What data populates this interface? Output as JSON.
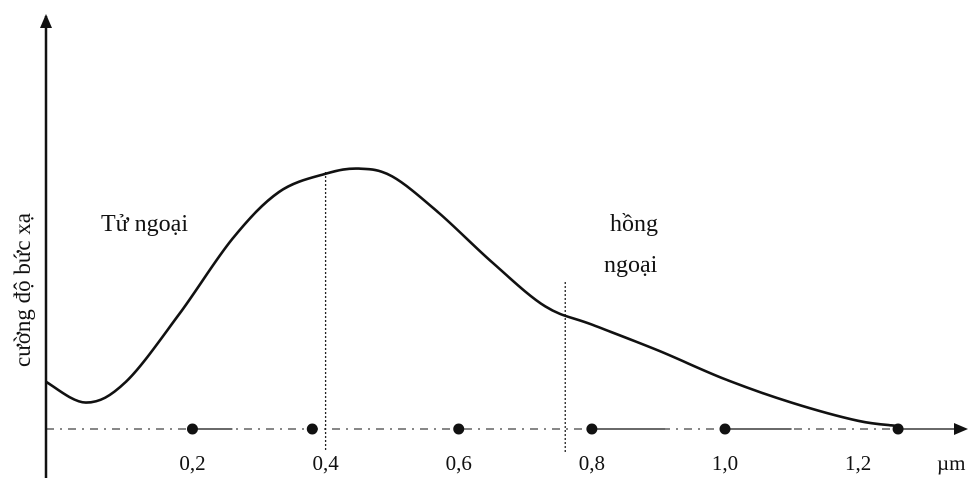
{
  "chart_data": {
    "type": "line",
    "xlabel": "µm",
    "ylabel": "cường độ bức xạ",
    "x_ticks": [
      "0,2",
      "0,4",
      "0,6",
      "0,8",
      "1,0",
      "1,2"
    ],
    "x_tick_values": [
      0.2,
      0.4,
      0.6,
      0.8,
      1.0,
      1.2
    ],
    "xlim": [
      -0.02,
      1.35
    ],
    "ylim": [
      0,
      1
    ],
    "grid": false,
    "annotations": [
      {
        "text": "Tử ngoại",
        "x": 0.1,
        "y": 0.72
      },
      {
        "text": "hồng",
        "x": 0.9,
        "y": 0.72
      },
      {
        "text": "ngoại",
        "x": 0.9,
        "y": 0.56
      }
    ],
    "vertical_markers": [
      0.4,
      0.76
    ],
    "series": [
      {
        "x": [
          -0.02,
          0.04,
          0.1,
          0.18,
          0.26,
          0.33,
          0.4,
          0.45,
          0.5,
          0.57,
          0.65,
          0.73,
          0.8,
          0.9,
          1.0,
          1.1,
          1.2,
          1.26
        ],
        "values": [
          0.17,
          0.09,
          0.17,
          0.43,
          0.72,
          0.9,
          0.97,
          0.99,
          0.96,
          0.82,
          0.63,
          0.46,
          0.39,
          0.29,
          0.18,
          0.09,
          0.02,
          0.0
        ]
      }
    ],
    "range_dots": [
      {
        "x": 0.2,
        "segment_to": 0.26
      },
      {
        "x": 0.38,
        "segment_to": null
      },
      {
        "x": 0.6,
        "segment_to": null
      },
      {
        "x": 0.8,
        "segment_to": 0.91
      },
      {
        "x": 1.0,
        "segment_to": 1.1
      },
      {
        "x": 1.26,
        "segment_to": 1.35
      }
    ]
  }
}
